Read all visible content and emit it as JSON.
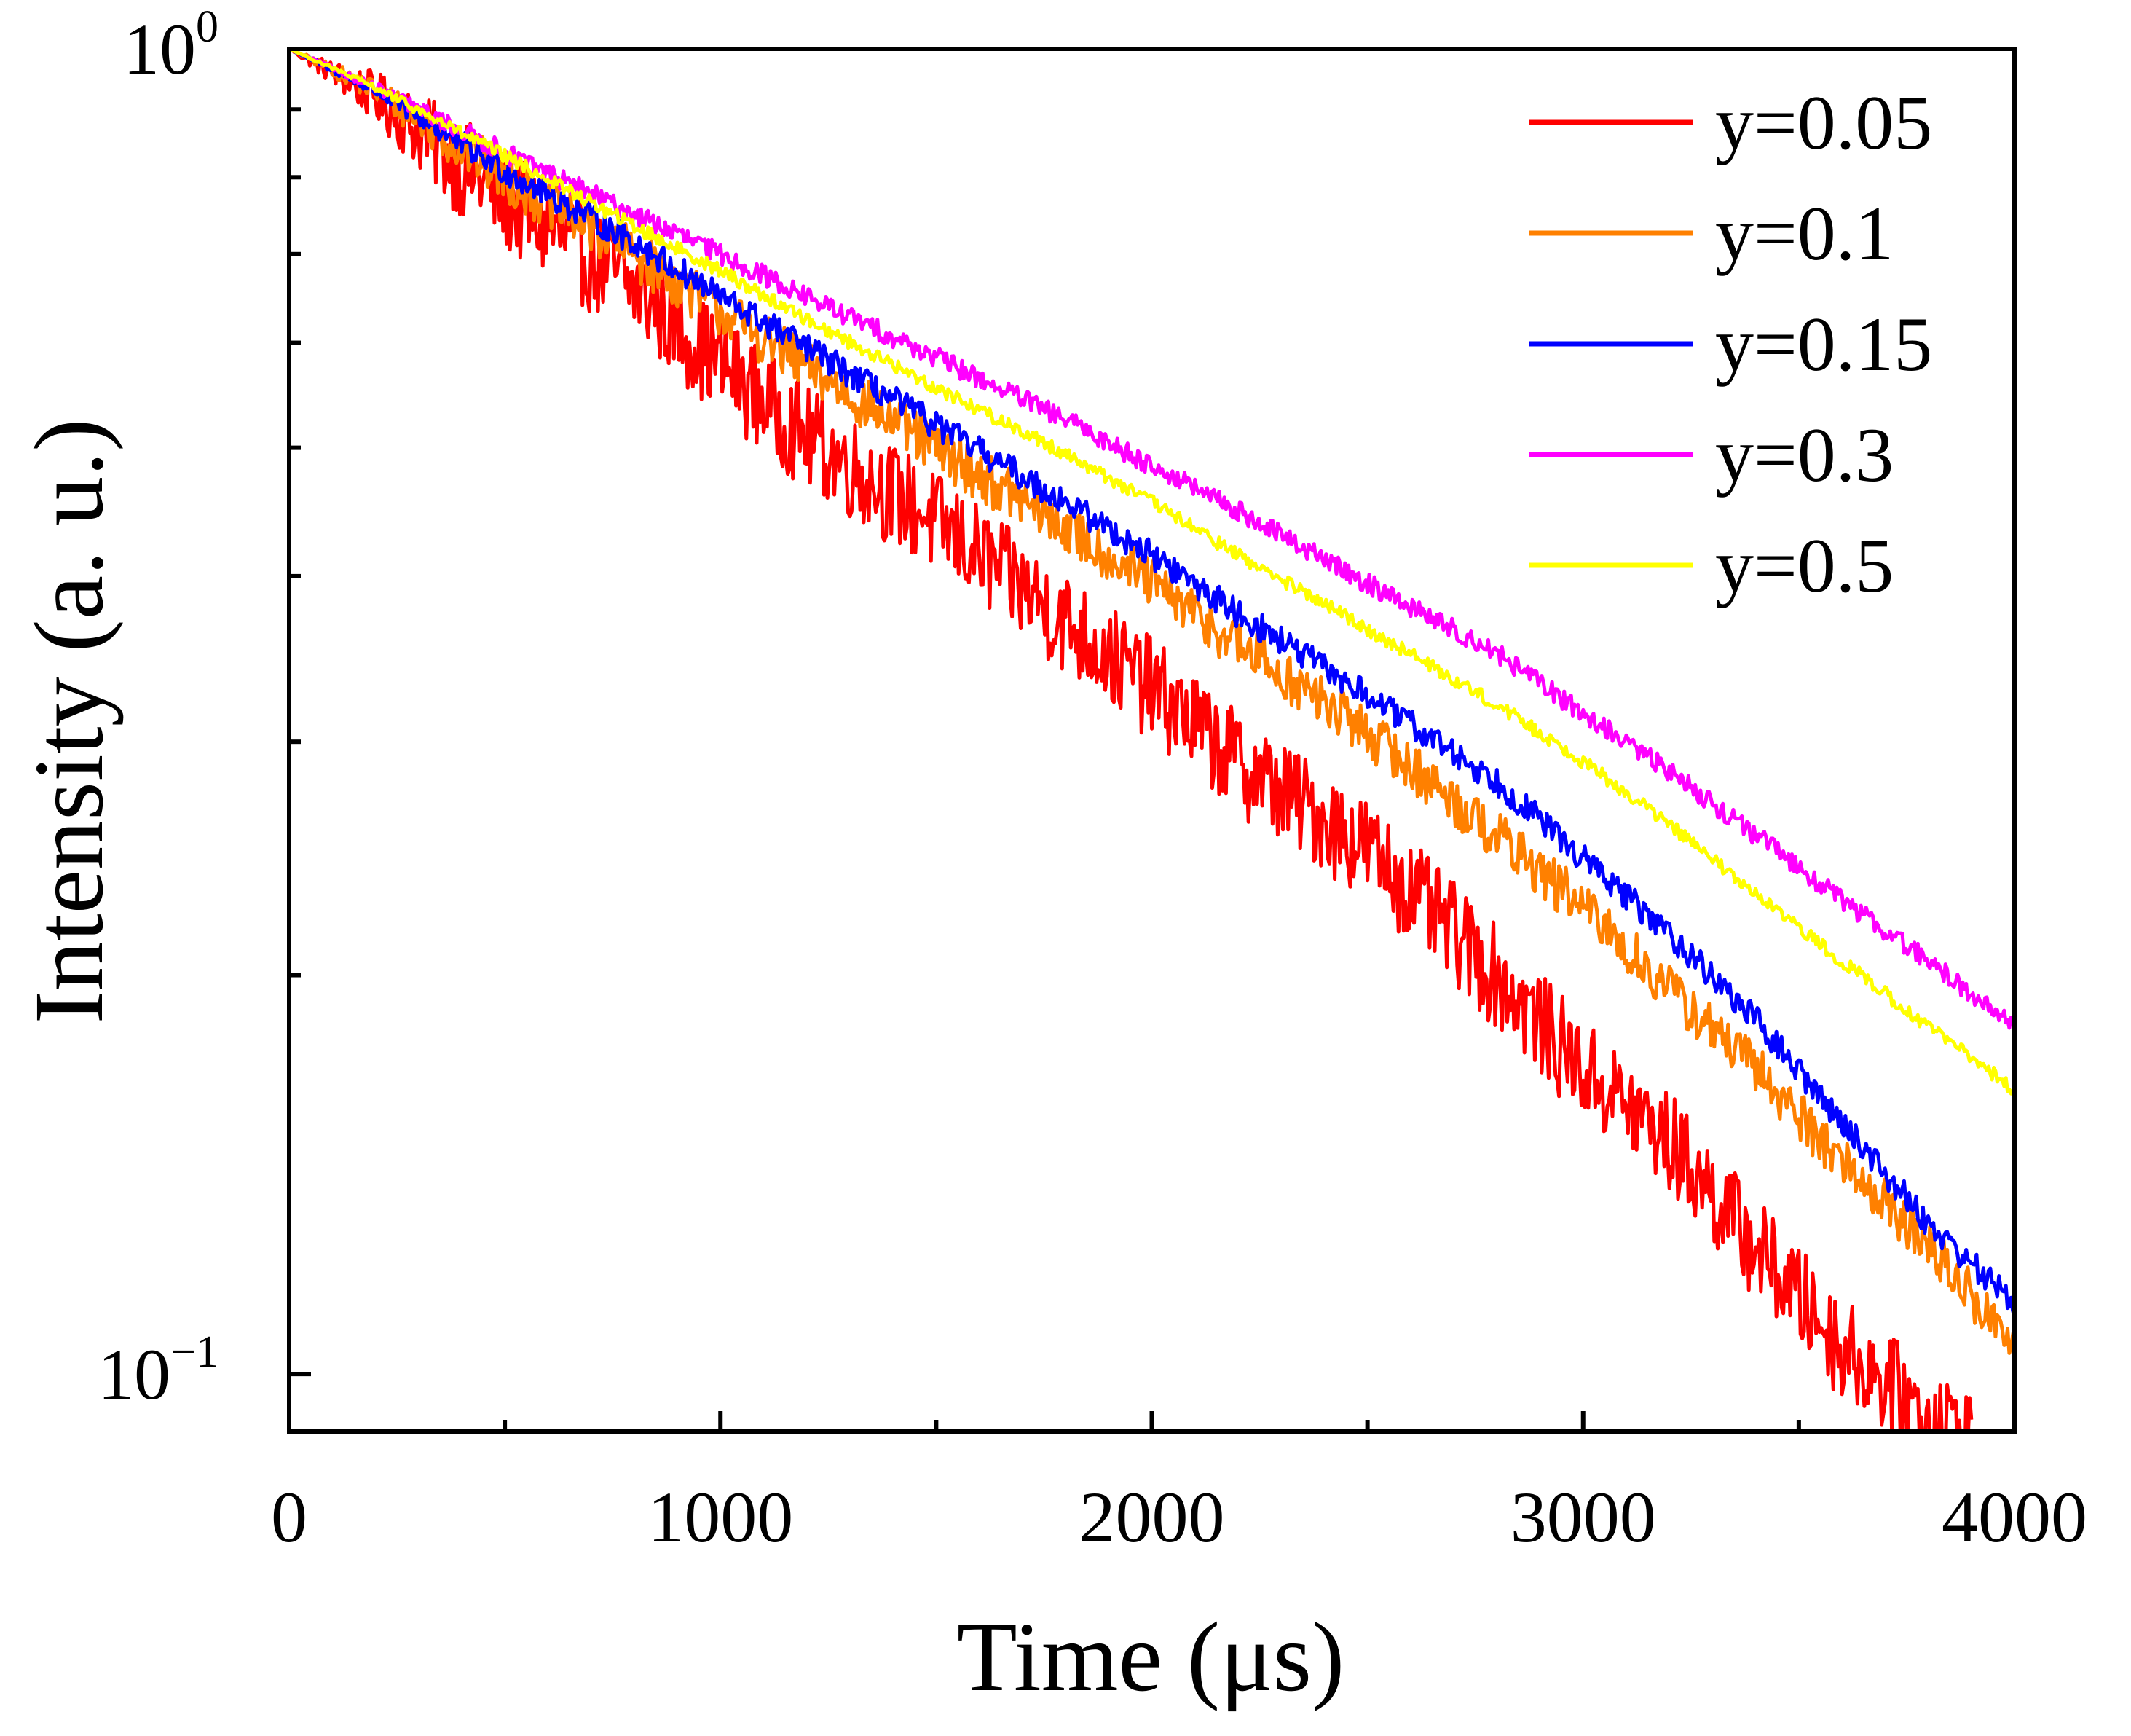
{
  "chart_data": {
    "type": "line",
    "title": "",
    "xlabel": "Time (μs)",
    "ylabel": "Intensity (a. u.)",
    "xlim": [
      0,
      4000
    ],
    "ylim": [
      0.0905,
      1.0
    ],
    "yscale": "log",
    "x_ticks": [
      0,
      1000,
      2000,
      3000,
      4000
    ],
    "x_tick_labels": [
      "0",
      "1000",
      "2000",
      "3000",
      "4000"
    ],
    "y_major_ticks": [
      {
        "value": 1.0,
        "base": "10",
        "exponent": "0"
      },
      {
        "value": 0.1,
        "base": "10",
        "exponent": "−1"
      }
    ],
    "grid": false,
    "legend_position": "top-right",
    "series": [
      {
        "name": "y=0.05",
        "color": "#ff0000",
        "x": [
          0,
          200,
          500,
          800,
          1000,
          1200,
          1500,
          1800,
          2000,
          2200,
          2500,
          2800,
          3000,
          3200,
          3400,
          3600,
          3800,
          3900
        ],
        "values": [
          1.0,
          0.92,
          0.77,
          0.66,
          0.58,
          0.51,
          0.44,
          0.37,
          0.33,
          0.29,
          0.25,
          0.2,
          0.17,
          0.15,
          0.125,
          0.105,
          0.093,
          0.09
        ],
        "noise": 0.09
      },
      {
        "name": "y=0.1",
        "color": "#ff8000",
        "x": [
          0,
          200,
          500,
          800,
          1000,
          1200,
          1500,
          1800,
          2000,
          2200,
          2500,
          2800,
          3000,
          3200,
          3400,
          3600,
          3800,
          4000
        ],
        "values": [
          1.0,
          0.93,
          0.8,
          0.7,
          0.635,
          0.575,
          0.5,
          0.435,
          0.395,
          0.355,
          0.305,
          0.255,
          0.225,
          0.195,
          0.17,
          0.145,
          0.125,
          0.105
        ],
        "noise": 0.045
      },
      {
        "name": "y=0.15",
        "color": "#0000ff",
        "x": [
          0,
          200,
          500,
          800,
          1000,
          1200,
          1500,
          1800,
          2000,
          2200,
          2500,
          2800,
          3000,
          3200,
          3400,
          3600,
          3800,
          4000
        ],
        "values": [
          1.0,
          0.93,
          0.81,
          0.715,
          0.65,
          0.595,
          0.52,
          0.455,
          0.415,
          0.375,
          0.325,
          0.28,
          0.245,
          0.215,
          0.185,
          0.155,
          0.13,
          0.113
        ],
        "noise": 0.025
      },
      {
        "name": "y=0.3",
        "color": "#ff00ff",
        "x": [
          0,
          200,
          500,
          800,
          1000,
          1200,
          1500,
          1800,
          2000,
          2200,
          2500,
          2800,
          3000,
          3200,
          3400,
          3600,
          3800,
          4000
        ],
        "values": [
          1.0,
          0.935,
          0.835,
          0.75,
          0.7,
          0.65,
          0.585,
          0.525,
          0.485,
          0.448,
          0.395,
          0.35,
          0.315,
          0.285,
          0.255,
          0.228,
          0.205,
          0.183
        ],
        "noise": 0.018
      },
      {
        "name": "y=0.5",
        "color": "#ffff00",
        "x": [
          0,
          200,
          500,
          800,
          1000,
          1200,
          1500,
          1800,
          2000,
          2200,
          2500,
          2800,
          3000,
          3200,
          3400,
          3600,
          3800,
          4000
        ],
        "values": [
          1.0,
          0.935,
          0.83,
          0.735,
          0.68,
          0.625,
          0.555,
          0.495,
          0.455,
          0.415,
          0.365,
          0.32,
          0.29,
          0.26,
          0.23,
          0.205,
          0.183,
          0.164
        ],
        "noise": 0.012
      }
    ]
  }
}
